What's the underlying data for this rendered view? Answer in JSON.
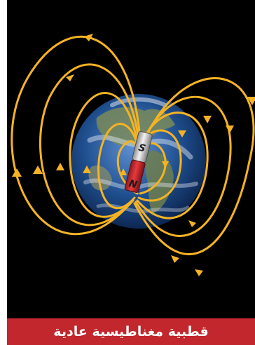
{
  "figure": {
    "caption": "قطبية مغناطيسية عادية",
    "magnet": {
      "top_pole_label": "S",
      "bottom_pole_label": "N"
    },
    "icons": [
      "earth-globe",
      "bar-magnet",
      "field-line-arrow"
    ]
  },
  "colors": {
    "background": "#000000",
    "field_lines": "#f5b324",
    "caption_bar": "#c1272d",
    "caption_text": "#ffffff",
    "ocean": "#1f4f8f",
    "land": "#7a8a5a",
    "magnet_red": "#d3262b",
    "magnet_silver": "#d9d9d9"
  }
}
